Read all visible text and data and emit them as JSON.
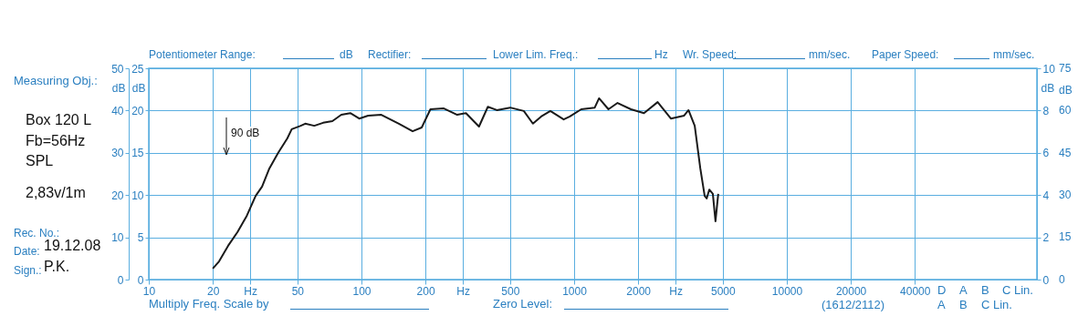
{
  "chart_data": {
    "type": "line",
    "x": [
      20,
      21.4,
      23.6,
      26.1,
      28.9,
      31.8,
      34.1,
      36.9,
      40.6,
      44.8,
      47,
      51.8,
      54.4,
      60,
      66,
      73,
      80.4,
      88.6,
      97.6,
      107.5,
      124,
      150,
      174,
      192,
      211,
      244,
      282,
      310,
      357,
      393,
      433,
      500,
      580,
      640,
      700,
      773,
      893,
      955,
      1080,
      1250,
      1310,
      1450,
      1600,
      1850,
      2130,
      2470,
      2850,
      3290,
      3450,
      3690,
      3920,
      4110,
      4200,
      4320,
      4490,
      4620,
      4760
    ],
    "series": [
      {
        "color": "#1a1a1a",
        "axis": "y",
        "values": [
          2.6,
          4.3,
          8.0,
          11.2,
          15.1,
          19.8,
          22.0,
          26.3,
          30.0,
          33.4,
          35.6,
          36.4,
          36.9,
          36.4,
          37.1,
          37.5,
          39.0,
          39.4,
          38.1,
          38.8,
          39.0,
          36.9,
          35.1,
          36.0,
          40.3,
          40.5,
          39.0,
          39.4,
          36.2,
          40.9,
          40.1,
          40.7,
          39.9,
          36.9,
          38.6,
          39.9,
          37.9,
          38.6,
          40.3,
          40.7,
          42.9,
          40.3,
          41.8,
          40.3,
          39.4,
          42.0,
          38.1,
          38.8,
          40.1,
          36.4,
          26.3,
          19.8,
          19.2,
          21.3,
          20.3,
          13.8,
          20.3
        ]
      }
    ],
    "log": "x",
    "xlim": [
      10,
      150000
    ],
    "xticks": [
      10,
      20,
      {
        "value": 30,
        "label": "Hz"
      },
      50,
      100,
      200,
      {
        "value": 300,
        "label": "Hz"
      },
      500,
      1000,
      2000,
      {
        "value": 3000,
        "label": "Hz"
      },
      5000,
      10000,
      20000,
      40000
    ],
    "ylim": [
      0,
      50
    ],
    "yticks": [
      0,
      10,
      20,
      30,
      40,
      50
    ],
    "ylabel": "dB",
    "y3lim": [
      0,
      25
    ],
    "y3ticks": [
      0,
      5,
      10,
      15,
      20,
      25
    ],
    "y3label": "dB",
    "y2lim": [
      0,
      10
    ],
    "y2ticks": [
      0,
      2,
      4,
      6,
      8,
      10
    ],
    "y2label": "dB",
    "grid": true,
    "annotations": [
      "Potentiometer Range:",
      "dB",
      "Rectifier:",
      "Lower Lim. Freq.:",
      "Hz",
      "Wr. Speed:",
      "mm/sec.",
      "Paper Speed:",
      "mm/sec.",
      "Measuring Obj.:",
      "Box 120 L",
      "Fb=56Hz",
      "SPL",
      "2,83v/1m",
      "Rec. No.:",
      "Date:",
      "19.12.08",
      "Sign.:",
      "P.K.",
      "Multiply Freq. Scale by",
      "Zero Level:",
      "(1612/2112)",
      "D",
      "A",
      "B",
      "C Lin.",
      "A",
      "B",
      "C Lin.",
      "90 dB",
      "dB",
      "75",
      "60",
      "45",
      "30",
      "15",
      "0"
    ]
  }
}
